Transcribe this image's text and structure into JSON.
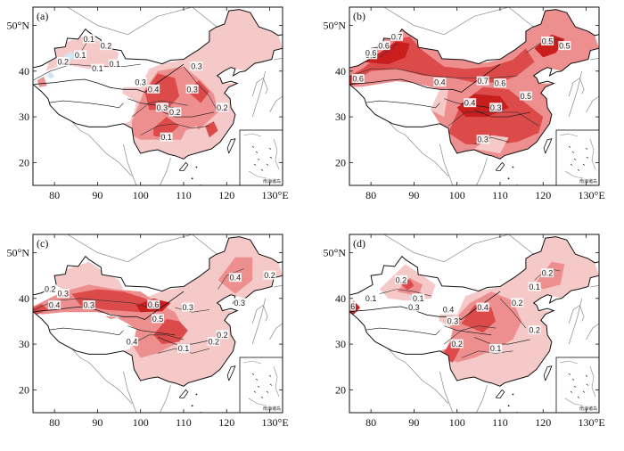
{
  "figure": {
    "panels": [
      {
        "tag": "(a)",
        "x_ticks": [
          "80",
          "90",
          "100",
          "110",
          "120",
          "130°E"
        ],
        "y_ticks": [
          "50°N",
          "40",
          "30",
          "20"
        ],
        "inset_label": "南海诸岛",
        "contour_labels": [
          "0.1",
          "0.2",
          "0.1",
          "0.2",
          "0.1",
          "0.1",
          "0.3",
          "0.3",
          "0.4",
          "0.3",
          "0.3",
          "0.2",
          "0.2",
          "0.1"
        ],
        "colors": {
          "light": "#f6c9c9",
          "mid": "#ee8f8f",
          "dark": "#dd4a4a",
          "vdark": "#c81e1e",
          "neg": "#cfe6f4"
        }
      },
      {
        "tag": "(b)",
        "x_ticks": [
          "80",
          "90",
          "100",
          "110",
          "120",
          "130°E"
        ],
        "y_ticks": [
          "50°N",
          "40",
          "30",
          "20"
        ],
        "inset_label": "南海诸岛",
        "contour_labels": [
          "0.7",
          "0.6",
          "0.5",
          "0.5",
          "0.6",
          "0.4",
          "0.4",
          "0.7",
          "0.6",
          "0.5",
          "0.3",
          "0.3",
          "0.5",
          "0.6"
        ],
        "colors": {
          "light": "#f6c9c9",
          "mid": "#ee8f8f",
          "dark": "#dd4a4a",
          "vdark": "#c81e1e",
          "neg": "#cfe6f4"
        }
      },
      {
        "tag": "(c)",
        "x_ticks": [
          "80",
          "90",
          "100",
          "110",
          "120",
          "130°E"
        ],
        "y_ticks": [
          "50°N",
          "40",
          "30",
          "20"
        ],
        "inset_label": "南海诸岛",
        "contour_labels": [
          "0.2",
          "0.3",
          "0.4",
          "0.3",
          "0.6",
          "0.5",
          "0.3",
          "0.4",
          "0.4",
          "0.3",
          "0.2",
          "0.2",
          "0.1",
          "0.2"
        ],
        "colors": {
          "light": "#f6c9c9",
          "mid": "#ee8f8f",
          "dark": "#dd4a4a",
          "vdark": "#c81e1e",
          "neg": "#cfe6f4"
        }
      },
      {
        "tag": "(d)",
        "x_ticks": [
          "80",
          "90",
          "100",
          "110",
          "120",
          "130°E"
        ],
        "y_ticks": [
          "50°N",
          "40",
          "30",
          "20"
        ],
        "inset_label": "南海诸岛",
        "contour_labels": [
          "0.2",
          "0.6",
          "0.4",
          "0.1",
          "0.3",
          "0.3",
          "0.4",
          "0.2",
          "0.2",
          "0.1",
          "0.1",
          "0.2",
          "0.2",
          "0.1"
        ],
        "colors": {
          "light": "#f6c9c9",
          "mid": "#ee8f8f",
          "dark": "#dd4a4a",
          "vdark": "#c81e1e",
          "neg": "#cfe6f4"
        }
      }
    ]
  }
}
